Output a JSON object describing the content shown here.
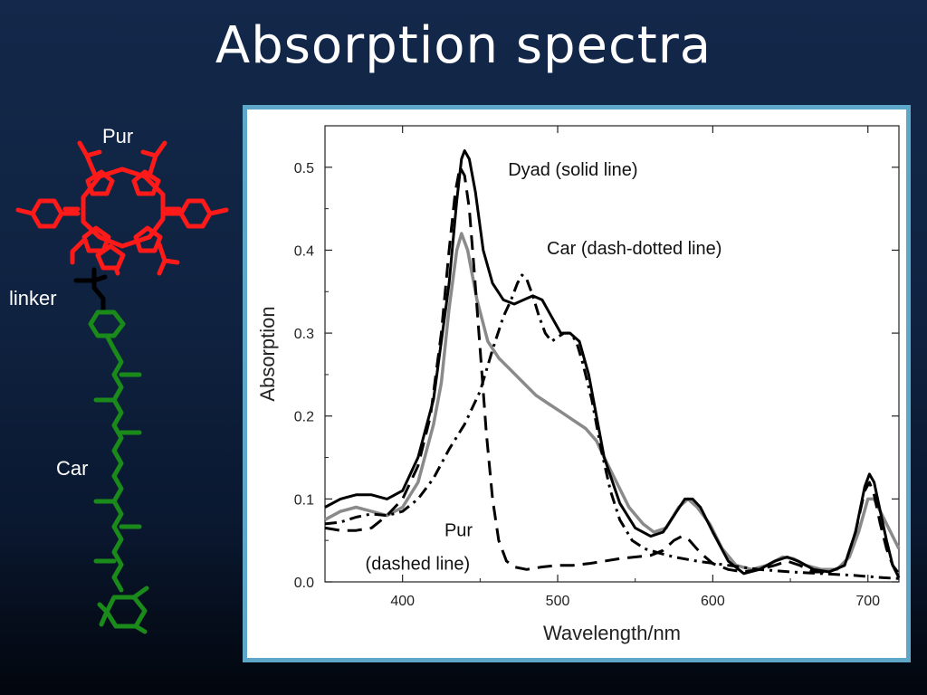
{
  "slide": {
    "title": "Absorption spectra"
  },
  "molecule": {
    "labels": {
      "pur": "Pur",
      "linker": "linker",
      "car": "Car"
    },
    "colors": {
      "pur": "#ff1a1a",
      "linker": "#000000",
      "car": "#1a8a1a"
    }
  },
  "chart_data": {
    "type": "line",
    "xlabel": "Wavelength/nm",
    "ylabel": "Absorption",
    "xlim": [
      350,
      720
    ],
    "ylim": [
      0,
      0.55
    ],
    "x_ticks": [
      400,
      500,
      600,
      700
    ],
    "y_ticks": [
      0.0,
      0.1,
      0.2,
      0.3,
      0.4,
      0.5
    ],
    "y_tick_labels": [
      "0.0",
      "0.1",
      "0.2",
      "0.3",
      "0.4",
      "0.5"
    ],
    "grid": false,
    "annotations": [
      {
        "text": "Dyad (solid line)",
        "x": 468,
        "y": 0.49
      },
      {
        "text": "Car (dash-dotted line)",
        "x": 493,
        "y": 0.395
      },
      {
        "text": "Pur",
        "x": 427,
        "y": 0.055
      },
      {
        "text": "(dashed line)",
        "x": 376,
        "y": 0.015
      }
    ],
    "series": [
      {
        "style": "solid",
        "color": "#000000",
        "points": [
          [
            350,
            0.09
          ],
          [
            360,
            0.1
          ],
          [
            370,
            0.105
          ],
          [
            380,
            0.105
          ],
          [
            390,
            0.1
          ],
          [
            400,
            0.11
          ],
          [
            410,
            0.15
          ],
          [
            420,
            0.22
          ],
          [
            430,
            0.36
          ],
          [
            435,
            0.46
          ],
          [
            438,
            0.51
          ],
          [
            440,
            0.52
          ],
          [
            443,
            0.51
          ],
          [
            447,
            0.47
          ],
          [
            452,
            0.4
          ],
          [
            458,
            0.36
          ],
          [
            465,
            0.34
          ],
          [
            472,
            0.335
          ],
          [
            478,
            0.34
          ],
          [
            484,
            0.345
          ],
          [
            490,
            0.34
          ],
          [
            496,
            0.32
          ],
          [
            502,
            0.3
          ],
          [
            508,
            0.3
          ],
          [
            514,
            0.29
          ],
          [
            520,
            0.25
          ],
          [
            530,
            0.15
          ],
          [
            540,
            0.095
          ],
          [
            550,
            0.065
          ],
          [
            560,
            0.055
          ],
          [
            568,
            0.06
          ],
          [
            575,
            0.08
          ],
          [
            582,
            0.1
          ],
          [
            587,
            0.1
          ],
          [
            592,
            0.09
          ],
          [
            600,
            0.06
          ],
          [
            610,
            0.025
          ],
          [
            620,
            0.01
          ],
          [
            630,
            0.015
          ],
          [
            640,
            0.025
          ],
          [
            648,
            0.03
          ],
          [
            655,
            0.025
          ],
          [
            665,
            0.015
          ],
          [
            675,
            0.012
          ],
          [
            685,
            0.02
          ],
          [
            692,
            0.06
          ],
          [
            698,
            0.115
          ],
          [
            701,
            0.13
          ],
          [
            704,
            0.12
          ],
          [
            708,
            0.085
          ],
          [
            712,
            0.05
          ],
          [
            716,
            0.02
          ],
          [
            720,
            0.005
          ]
        ]
      },
      {
        "style": "solid-gray",
        "color": "#8a8a8a",
        "points": [
          [
            350,
            0.075
          ],
          [
            360,
            0.085
          ],
          [
            370,
            0.09
          ],
          [
            380,
            0.085
          ],
          [
            390,
            0.08
          ],
          [
            400,
            0.09
          ],
          [
            410,
            0.12
          ],
          [
            420,
            0.19
          ],
          [
            425,
            0.24
          ],
          [
            430,
            0.33
          ],
          [
            435,
            0.4
          ],
          [
            438,
            0.42
          ],
          [
            442,
            0.4
          ],
          [
            448,
            0.34
          ],
          [
            455,
            0.29
          ],
          [
            462,
            0.27
          ],
          [
            470,
            0.255
          ],
          [
            478,
            0.24
          ],
          [
            486,
            0.225
          ],
          [
            494,
            0.215
          ],
          [
            502,
            0.205
          ],
          [
            510,
            0.195
          ],
          [
            518,
            0.185
          ],
          [
            525,
            0.17
          ],
          [
            530,
            0.15
          ],
          [
            538,
            0.12
          ],
          [
            546,
            0.09
          ],
          [
            555,
            0.07
          ],
          [
            562,
            0.06
          ],
          [
            570,
            0.065
          ],
          [
            578,
            0.09
          ],
          [
            584,
            0.1
          ],
          [
            590,
            0.09
          ],
          [
            598,
            0.07
          ],
          [
            606,
            0.04
          ],
          [
            615,
            0.02
          ],
          [
            625,
            0.015
          ],
          [
            635,
            0.02
          ],
          [
            645,
            0.03
          ],
          [
            652,
            0.028
          ],
          [
            660,
            0.02
          ],
          [
            670,
            0.015
          ],
          [
            680,
            0.015
          ],
          [
            688,
            0.03
          ],
          [
            694,
            0.06
          ],
          [
            700,
            0.1
          ],
          [
            704,
            0.1
          ],
          [
            708,
            0.085
          ],
          [
            712,
            0.07
          ],
          [
            716,
            0.055
          ],
          [
            720,
            0.04
          ]
        ]
      },
      {
        "style": "dashed",
        "color": "#000000",
        "points": [
          [
            350,
            0.065
          ],
          [
            360,
            0.062
          ],
          [
            370,
            0.062
          ],
          [
            380,
            0.065
          ],
          [
            390,
            0.08
          ],
          [
            400,
            0.1
          ],
          [
            410,
            0.14
          ],
          [
            418,
            0.2
          ],
          [
            425,
            0.3
          ],
          [
            430,
            0.4
          ],
          [
            434,
            0.47
          ],
          [
            437,
            0.5
          ],
          [
            440,
            0.49
          ],
          [
            443,
            0.45
          ],
          [
            446,
            0.38
          ],
          [
            450,
            0.28
          ],
          [
            454,
            0.18
          ],
          [
            458,
            0.1
          ],
          [
            462,
            0.05
          ],
          [
            467,
            0.025
          ],
          [
            472,
            0.018
          ],
          [
            480,
            0.015
          ],
          [
            490,
            0.018
          ],
          [
            500,
            0.02
          ],
          [
            510,
            0.02
          ],
          [
            520,
            0.022
          ],
          [
            530,
            0.025
          ],
          [
            540,
            0.028
          ],
          [
            550,
            0.03
          ],
          [
            560,
            0.032
          ],
          [
            568,
            0.038
          ],
          [
            575,
            0.05
          ],
          [
            580,
            0.055
          ],
          [
            585,
            0.05
          ],
          [
            592,
            0.035
          ],
          [
            600,
            0.022
          ],
          [
            610,
            0.015
          ],
          [
            620,
            0.012
          ],
          [
            630,
            0.015
          ],
          [
            640,
            0.02
          ],
          [
            648,
            0.025
          ],
          [
            656,
            0.02
          ],
          [
            665,
            0.012
          ],
          [
            675,
            0.012
          ],
          [
            685,
            0.02
          ],
          [
            692,
            0.06
          ],
          [
            698,
            0.11
          ],
          [
            701,
            0.12
          ],
          [
            704,
            0.105
          ],
          [
            708,
            0.07
          ],
          [
            712,
            0.04
          ],
          [
            716,
            0.02
          ],
          [
            720,
            0.01
          ]
        ]
      },
      {
        "style": "dash-dot",
        "color": "#000000",
        "points": [
          [
            350,
            0.07
          ],
          [
            360,
            0.072
          ],
          [
            370,
            0.078
          ],
          [
            380,
            0.082
          ],
          [
            390,
            0.08
          ],
          [
            400,
            0.085
          ],
          [
            410,
            0.1
          ],
          [
            420,
            0.125
          ],
          [
            430,
            0.16
          ],
          [
            440,
            0.19
          ],
          [
            450,
            0.23
          ],
          [
            458,
            0.28
          ],
          [
            465,
            0.32
          ],
          [
            470,
            0.34
          ],
          [
            474,
            0.36
          ],
          [
            477,
            0.37
          ],
          [
            480,
            0.365
          ],
          [
            484,
            0.345
          ],
          [
            488,
            0.32
          ],
          [
            492,
            0.3
          ],
          [
            496,
            0.29
          ],
          [
            500,
            0.295
          ],
          [
            504,
            0.3
          ],
          [
            508,
            0.3
          ],
          [
            512,
            0.29
          ],
          [
            516,
            0.265
          ],
          [
            522,
            0.22
          ],
          [
            528,
            0.16
          ],
          [
            534,
            0.11
          ],
          [
            540,
            0.075
          ],
          [
            548,
            0.05
          ],
          [
            556,
            0.04
          ],
          [
            565,
            0.035
          ],
          [
            575,
            0.03
          ],
          [
            590,
            0.025
          ],
          [
            610,
            0.02
          ],
          [
            630,
            0.015
          ],
          [
            650,
            0.012
          ],
          [
            670,
            0.01
          ],
          [
            690,
            0.008
          ],
          [
            710,
            0.005
          ],
          [
            720,
            0.004
          ]
        ]
      }
    ]
  }
}
